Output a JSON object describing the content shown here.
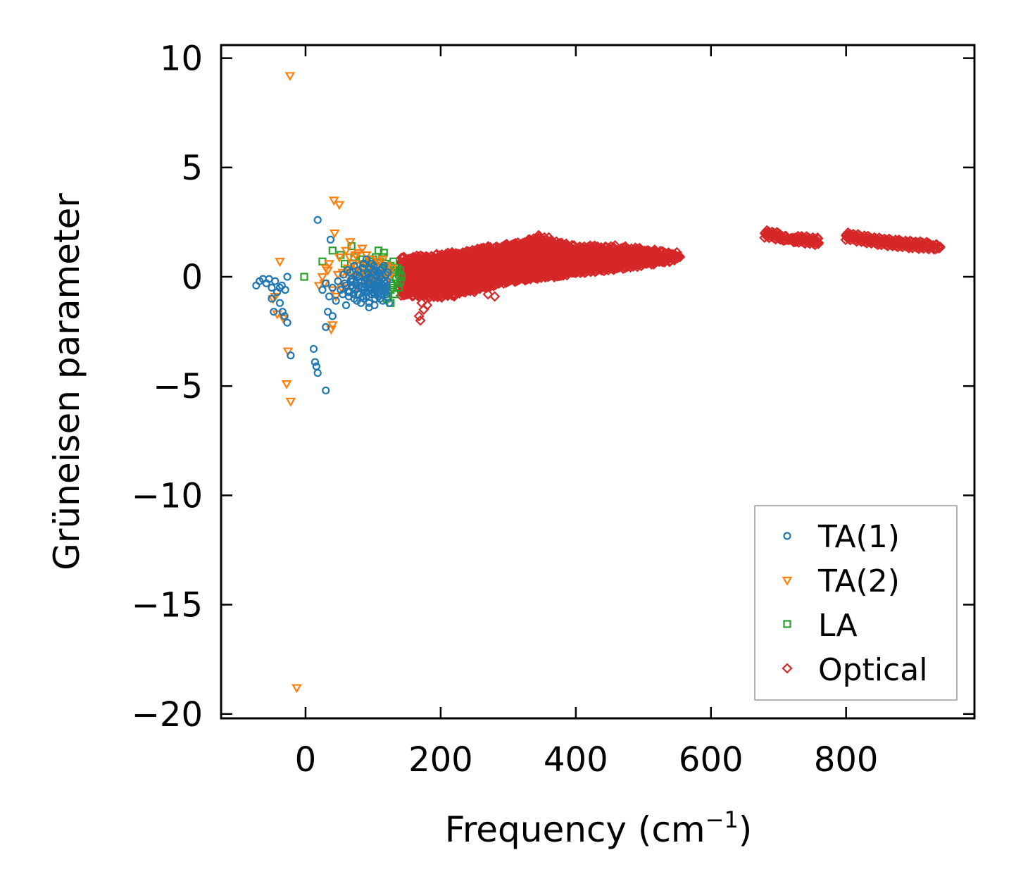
{
  "chart_data": {
    "type": "scatter",
    "title": "",
    "xlabel": "Frequency (cm",
    "xlabel_sup": "−1",
    "xlabel_end": ")",
    "ylabel": "Grüneisen parameter",
    "xlim": [
      -125,
      990
    ],
    "ylim": [
      -20.2,
      10.6
    ],
    "xticks": [
      0,
      200,
      400,
      600,
      800
    ],
    "xtick_labels": [
      "0",
      "200",
      "400",
      "600",
      "800"
    ],
    "yticks": [
      10,
      5,
      0,
      -5,
      -10,
      -15,
      -20
    ],
    "ytick_labels": [
      "10",
      "5",
      "0",
      "−5",
      "−10",
      "−15",
      "−20"
    ],
    "grid": false,
    "legend_position": "lower-right",
    "series": [
      {
        "name": "TA(1)",
        "marker": "circle",
        "color": "#1f77b4",
        "points": [
          [
            -73,
            -0.4
          ],
          [
            -68,
            -0.2
          ],
          [
            -63,
            -0.1
          ],
          [
            -58,
            -0.3
          ],
          [
            -54,
            -0.1
          ],
          [
            -50,
            -0.5
          ],
          [
            -45,
            -0.2
          ],
          [
            -42,
            -0.7
          ],
          [
            -38,
            -0.5
          ],
          [
            -35,
            -0.4
          ],
          [
            -30,
            -0.6
          ],
          [
            -27,
            0.0
          ],
          [
            -50,
            -1.0
          ],
          [
            -38,
            -1.2
          ],
          [
            -47,
            -1.6
          ],
          [
            -34,
            -1.6
          ],
          [
            -31,
            -1.8
          ],
          [
            -27,
            -2.1
          ],
          [
            -22,
            -3.6
          ],
          [
            12,
            -3.3
          ],
          [
            14,
            -3.9
          ],
          [
            16,
            -4.1
          ],
          [
            18,
            -4.4
          ],
          [
            30,
            -5.2
          ],
          [
            18,
            2.6
          ],
          [
            37,
            1.7
          ],
          [
            30,
            -2.3
          ],
          [
            33,
            -1.6
          ],
          [
            40,
            -1.8
          ],
          [
            25,
            -0.6
          ],
          [
            30,
            -0.3
          ],
          [
            35,
            -0.9
          ],
          [
            40,
            -0.5
          ],
          [
            45,
            -1.1
          ],
          [
            48,
            -0.2
          ],
          [
            52,
            -0.6
          ],
          [
            55,
            -0.8
          ],
          [
            58,
            -0.3
          ],
          [
            60,
            -1.3
          ],
          [
            62,
            0.3
          ],
          [
            65,
            -0.7
          ],
          [
            68,
            -0.1
          ],
          [
            70,
            -0.5
          ],
          [
            72,
            -1.0
          ],
          [
            74,
            -0.3
          ],
          [
            76,
            0.1
          ],
          [
            78,
            -0.8
          ],
          [
            80,
            -0.4
          ],
          [
            82,
            -1.2
          ],
          [
            84,
            0.4
          ],
          [
            86,
            -0.6
          ],
          [
            88,
            -0.2
          ],
          [
            90,
            -0.9
          ],
          [
            92,
            0.2
          ],
          [
            94,
            -1.4
          ],
          [
            96,
            -0.5
          ],
          [
            98,
            -0.1
          ],
          [
            100,
            -0.7
          ],
          [
            102,
            -1.3
          ],
          [
            104,
            0.3
          ],
          [
            106,
            -0.4
          ],
          [
            108,
            -0.9
          ],
          [
            110,
            0.0
          ],
          [
            112,
            -0.6
          ],
          [
            114,
            -1.1
          ],
          [
            116,
            0.5
          ],
          [
            118,
            -0.3
          ],
          [
            120,
            -0.8
          ],
          [
            122,
            0.2
          ],
          [
            124,
            -1.2
          ],
          [
            86,
            0.6
          ],
          [
            90,
            0.8
          ],
          [
            94,
            -0.3
          ],
          [
            96,
            0.4
          ],
          [
            98,
            -0.6
          ],
          [
            101,
            -0.2
          ],
          [
            103,
            -0.5
          ],
          [
            105,
            0.1
          ],
          [
            107,
            -0.3
          ],
          [
            109,
            -0.7
          ],
          [
            111,
            0.3
          ],
          [
            113,
            -0.1
          ],
          [
            115,
            -0.4
          ],
          [
            117,
            -0.6
          ],
          [
            119,
            0.1
          ],
          [
            121,
            -0.2
          ],
          [
            88,
            -0.7
          ],
          [
            92,
            -0.3
          ],
          [
            95,
            0.0
          ],
          [
            97,
            -0.8
          ],
          [
            99,
            -0.4
          ],
          [
            101,
            0.5
          ],
          [
            103,
            -1.0
          ],
          [
            105,
            -0.6
          ],
          [
            107,
            0.2
          ],
          [
            109,
            -0.2
          ],
          [
            64,
            -0.9
          ],
          [
            68,
            -0.4
          ],
          [
            72,
            0.5
          ],
          [
            76,
            -1.1
          ],
          [
            80,
            0.0
          ],
          [
            84,
            -0.9
          ],
          [
            66,
            0.2
          ],
          [
            70,
            -0.2
          ],
          [
            74,
            -0.6
          ],
          [
            78,
            0.3
          ],
          [
            82,
            -0.5
          ],
          [
            86,
            -1.0
          ],
          [
            90,
            -0.1
          ],
          [
            94,
            -1.2
          ],
          [
            98,
            0.6
          ],
          [
            102,
            -0.8
          ],
          [
            106,
            -0.3
          ],
          [
            110,
            -1.0
          ],
          [
            114,
            0.4
          ],
          [
            118,
            -0.7
          ],
          [
            56,
            0.1
          ],
          [
            60,
            -0.4
          ],
          [
            63,
            -0.7
          ],
          [
            67,
            -0.2
          ],
          [
            71,
            -0.8
          ],
          [
            75,
            -0.4
          ],
          [
            79,
            0.0
          ],
          [
            83,
            -0.2
          ],
          [
            87,
            -0.5
          ],
          [
            91,
            -0.7
          ],
          [
            93,
            0.1
          ],
          [
            97,
            -0.3
          ],
          [
            100,
            0.2
          ],
          [
            104,
            -0.6
          ],
          [
            108,
            -0.4
          ],
          [
            112,
            -0.8
          ],
          [
            116,
            -0.2
          ],
          [
            120,
            -0.5
          ]
        ]
      },
      {
        "name": "TA(2)",
        "marker": "triangle-down",
        "color": "#ff7f0e",
        "points": [
          [
            -23,
            9.2
          ],
          [
            -13,
            -18.8
          ],
          [
            -22,
            -5.7
          ],
          [
            -28,
            -4.9
          ],
          [
            -26,
            -3.4
          ],
          [
            -38,
            0.7
          ],
          [
            -45,
            -0.9
          ],
          [
            -48,
            -1.0
          ],
          [
            -33,
            -1.9
          ],
          [
            -42,
            -1.7
          ],
          [
            42,
            3.5
          ],
          [
            50,
            3.3
          ],
          [
            43,
            2.0
          ],
          [
            38,
            -2.4
          ],
          [
            40,
            -2.2
          ],
          [
            25,
            0.0
          ],
          [
            30,
            0.4
          ],
          [
            35,
            0.6
          ],
          [
            40,
            -0.6
          ],
          [
            45,
            -0.9
          ],
          [
            50,
            0.9
          ],
          [
            55,
            0.2
          ],
          [
            58,
            -0.4
          ],
          [
            60,
            1.2
          ],
          [
            63,
            0.4
          ],
          [
            66,
            1.6
          ],
          [
            68,
            -0.2
          ],
          [
            70,
            0.6
          ],
          [
            72,
            0.0
          ],
          [
            74,
            1.0
          ],
          [
            76,
            -0.5
          ],
          [
            80,
            0.5
          ],
          [
            84,
            1.3
          ],
          [
            88,
            0.1
          ],
          [
            92,
            -0.4
          ],
          [
            96,
            0.8
          ],
          [
            100,
            0.3
          ],
          [
            104,
            -0.2
          ],
          [
            108,
            0.7
          ],
          [
            112,
            0.1
          ],
          [
            116,
            -0.3
          ],
          [
            120,
            0.5
          ],
          [
            124,
            0.0
          ],
          [
            128,
            0.4
          ],
          [
            20,
            -0.4
          ],
          [
            28,
            -0.3
          ],
          [
            33,
            0.3
          ],
          [
            48,
            0.1
          ],
          [
            53,
            -0.5
          ],
          [
            61,
            0.2
          ],
          [
            65,
            0.9
          ],
          [
            73,
            0.3
          ],
          [
            78,
            1.1
          ],
          [
            82,
            0.2
          ],
          [
            86,
            0.6
          ],
          [
            90,
            1.0
          ],
          [
            94,
            0.0
          ],
          [
            98,
            -0.1
          ],
          [
            102,
            0.6
          ],
          [
            106,
            0.2
          ],
          [
            110,
            -0.5
          ],
          [
            114,
            0.8
          ],
          [
            118,
            0.2
          ],
          [
            122,
            -0.1
          ]
        ]
      },
      {
        "name": "LA",
        "marker": "square",
        "color": "#2ca02c",
        "points": [
          [
            -2,
            0.0
          ],
          [
            25,
            0.7
          ],
          [
            40,
            1.2
          ],
          [
            52,
            1.0
          ],
          [
            58,
            0.6
          ],
          [
            62,
            0.3
          ],
          [
            68,
            1.4
          ],
          [
            72,
            0.9
          ],
          [
            76,
            0.5
          ],
          [
            80,
            0.2
          ],
          [
            84,
            0.8
          ],
          [
            86,
            0.4
          ],
          [
            88,
            0.0
          ],
          [
            90,
            0.6
          ],
          [
            92,
            -0.2
          ],
          [
            94,
            0.3
          ],
          [
            96,
            0.7
          ],
          [
            98,
            -0.5
          ],
          [
            100,
            0.2
          ],
          [
            102,
            -0.1
          ],
          [
            104,
            0.5
          ],
          [
            106,
            -0.3
          ],
          [
            108,
            1.2
          ],
          [
            110,
            0.1
          ],
          [
            112,
            -0.6
          ],
          [
            114,
            0.4
          ],
          [
            116,
            1.1
          ],
          [
            118,
            -0.2
          ],
          [
            120,
            0.3
          ],
          [
            122,
            -0.9
          ],
          [
            124,
            0.0
          ],
          [
            126,
            0.5
          ],
          [
            128,
            -0.4
          ],
          [
            130,
            0.2
          ],
          [
            132,
            -0.8
          ],
          [
            134,
            0.3
          ],
          [
            136,
            -0.3
          ],
          [
            138,
            0.1
          ],
          [
            140,
            -0.2
          ],
          [
            142,
            0.0
          ],
          [
            100,
            0.8
          ],
          [
            104,
            0.9
          ],
          [
            110,
            0.7
          ],
          [
            114,
            0.9
          ],
          [
            118,
            0.6
          ],
          [
            122,
            0.5
          ],
          [
            126,
            -0.6
          ],
          [
            130,
            -0.5
          ],
          [
            134,
            -0.1
          ],
          [
            138,
            -0.5
          ],
          [
            120,
            -1.0
          ],
          [
            126,
            -1.2
          ],
          [
            130,
            0.7
          ],
          [
            136,
            0.4
          ],
          [
            140,
            0.3
          ]
        ]
      },
      {
        "name": "Optical",
        "marker": "diamond",
        "color": "#d62728",
        "bands": [
          {
            "x": [
              142,
              200,
              260,
              300,
              350,
              360,
              400,
              450,
              500,
              540,
              555
            ],
            "ymin": [
              -0.8,
              -0.9,
              -0.5,
              -0.2,
              0.0,
              0.0,
              0.2,
              0.35,
              0.55,
              0.75,
              0.9
            ],
            "ymax": [
              0.9,
              1.0,
              1.3,
              1.5,
              1.8,
              1.7,
              1.4,
              1.4,
              1.3,
              1.1,
              1.05
            ]
          },
          {
            "x": [
              680,
              720,
              760
            ],
            "ymin": [
              1.85,
              1.65,
              1.5
            ],
            "ymax": [
              2.1,
              1.85,
              1.8
            ]
          },
          {
            "x": [
              800,
              850,
              900,
              940
            ],
            "ymin": [
              1.75,
              1.5,
              1.35,
              1.3
            ],
            "ymax": [
              2.05,
              1.8,
              1.6,
              1.5
            ]
          }
        ],
        "points": [
          [
            168,
            -1.8
          ],
          [
            170,
            -2.0
          ],
          [
            175,
            -1.5
          ],
          [
            172,
            -1.2
          ],
          [
            180,
            -1.3
          ],
          [
            270,
            -0.8
          ],
          [
            280,
            -0.9
          ],
          [
            250,
            -0.7
          ],
          [
            220,
            -0.9
          ],
          [
            260,
            1.3
          ],
          [
            330,
            1.7
          ],
          [
            345,
            1.9
          ],
          [
            360,
            1.8
          ]
        ]
      }
    ]
  }
}
